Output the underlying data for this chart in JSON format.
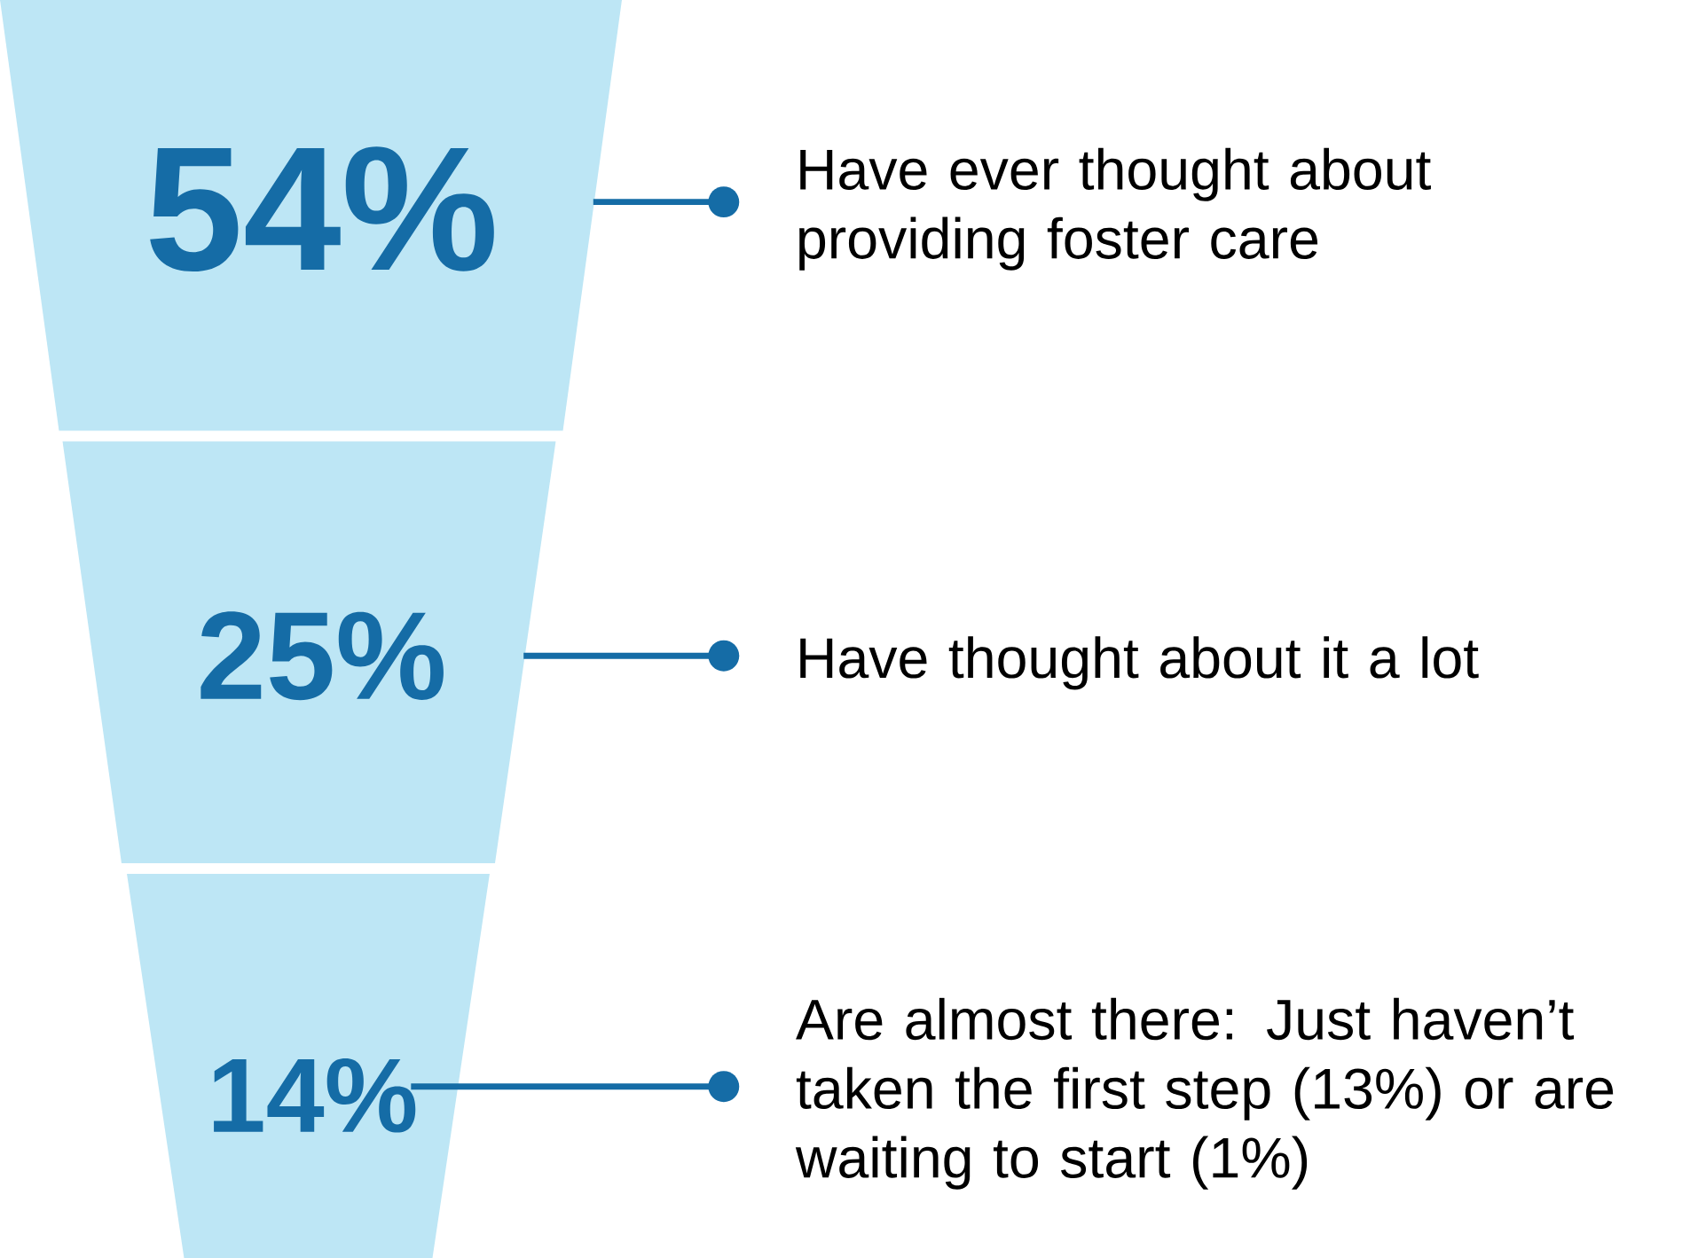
{
  "chart_data": {
    "type": "other",
    "categories": [
      "Have ever thought about providing foster care",
      "Have thought about it a lot",
      "Are almost there: Just haven’t taken the first step (13%) or are waiting to start (1%)"
    ],
    "values": [
      54,
      25,
      14
    ],
    "value_labels": [
      "54%",
      "25%",
      "14%"
    ],
    "color": "#bde6f5"
  }
}
